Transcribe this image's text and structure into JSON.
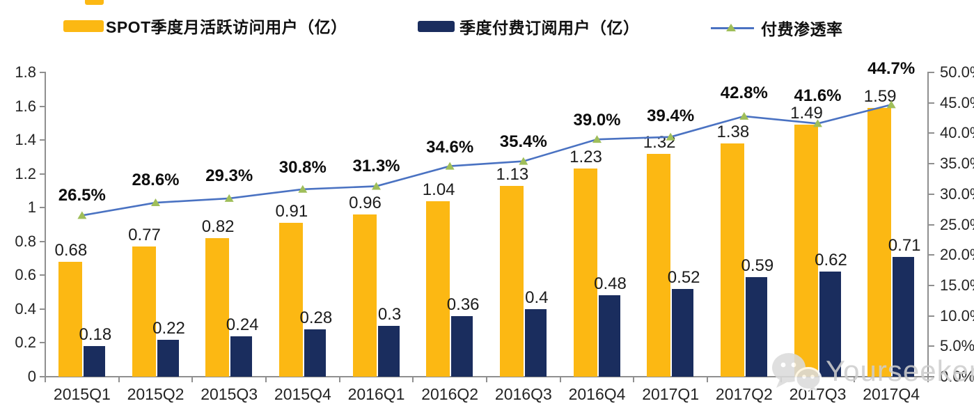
{
  "legend": {
    "mau_label": "SPOT季度月活跃访问用户（亿）",
    "subs_label": "季度付费订阅用户（亿）",
    "penetration_label": "付费渗透率"
  },
  "colors": {
    "mau_bar": "#FCB813",
    "subs_bar": "#1A2D5E",
    "line": "#4A72C2",
    "marker": "#9FBE5A",
    "axis": "#8f8f8f",
    "watermark": "#cdcdcd"
  },
  "chart_data": {
    "type": "bar",
    "subtype": "combo-bar-line",
    "categories": [
      "2015Q1",
      "2015Q2",
      "2015Q3",
      "2015Q4",
      "2016Q1",
      "2016Q2",
      "2016Q3",
      "2016Q4",
      "2017Q1",
      "2017Q2",
      "2017Q3",
      "2017Q4"
    ],
    "series": [
      {
        "name": "SPOT季度月活跃访问用户（亿）",
        "type": "bar",
        "values": [
          0.68,
          0.77,
          0.82,
          0.91,
          0.96,
          1.04,
          1.13,
          1.23,
          1.32,
          1.38,
          1.49,
          1.59
        ],
        "labels": [
          "0.68",
          "0.77",
          "0.82",
          "0.91",
          "0.96",
          "1.04",
          "1.13",
          "1.23",
          "1.32",
          "1.38",
          "1.49",
          "1.59"
        ],
        "axis": "left"
      },
      {
        "name": "季度付费订阅用户（亿）",
        "type": "bar",
        "values": [
          0.18,
          0.22,
          0.24,
          0.28,
          0.3,
          0.36,
          0.4,
          0.48,
          0.52,
          0.59,
          0.62,
          0.71
        ],
        "labels": [
          "0.18",
          "0.22",
          "0.24",
          "0.28",
          "0.3",
          "0.36",
          "0.4",
          "0.48",
          "0.52",
          "0.59",
          "0.62",
          "0.71"
        ],
        "axis": "left"
      },
      {
        "name": "付费渗透率",
        "type": "line",
        "values": [
          26.5,
          28.6,
          29.3,
          30.8,
          31.3,
          34.6,
          35.4,
          39.0,
          39.4,
          42.8,
          41.6,
          44.7
        ],
        "labels": [
          "26.5%",
          "28.6%",
          "29.3%",
          "30.8%",
          "31.3%",
          "34.6%",
          "35.4%",
          "39.0%",
          "39.4%",
          "42.8%",
          "41.6%",
          "44.7%"
        ],
        "axis": "right"
      }
    ],
    "left_axis": {
      "labels": [
        "1.8",
        "1.6",
        "1.4",
        "1.2",
        "1",
        "0.8",
        "0.6",
        "0.4",
        "0.2",
        "0"
      ],
      "min": 0,
      "max": 1.8
    },
    "right_axis": {
      "labels": [
        "50.0%",
        "45.0%",
        "40.0%",
        "35.0%",
        "30.0%",
        "25.0%",
        "20.0%",
        "15.0%",
        "10.0%",
        "5.0%",
        "0.0%"
      ],
      "min": 0,
      "max": 50
    },
    "grid": false,
    "legend_position": "top",
    "layout": {
      "pct_label_dy": [
        28,
        32,
        32,
        31,
        28,
        27,
        28,
        27,
        30,
        33,
        39,
        51
      ]
    }
  },
  "watermark": {
    "text": "Yourseeker",
    "icon": "wechat-icon"
  }
}
